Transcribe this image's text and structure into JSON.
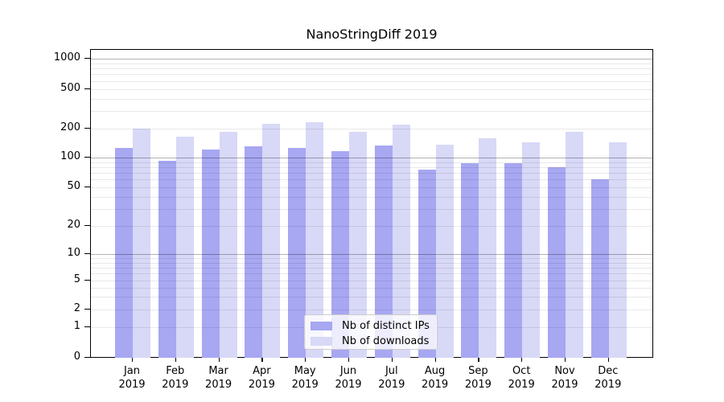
{
  "title": "NanoStringDiff 2019",
  "legend": {
    "items": [
      {
        "label": "Nb of distinct IPs",
        "color": "#A7A7F2"
      },
      {
        "label": "Nb of downloads",
        "color": "#D8D8F7"
      }
    ]
  },
  "y_axis": {
    "ticks": [
      {
        "label": "1000",
        "value": 1000
      },
      {
        "label": "500",
        "value": 500
      },
      {
        "label": "200",
        "value": 200
      },
      {
        "label": "100",
        "value": 100
      },
      {
        "label": "50",
        "value": 50
      },
      {
        "label": "20",
        "value": 20
      },
      {
        "label": "10",
        "value": 10
      },
      {
        "label": "5",
        "value": 5
      },
      {
        "label": "2",
        "value": 2
      },
      {
        "label": "1",
        "value": 1
      },
      {
        "label": "0",
        "value": 0
      }
    ]
  },
  "chart_data": {
    "type": "bar",
    "title": "NanoStringDiff 2019",
    "categories": [
      "Jan 2019",
      "Feb 2019",
      "Mar 2019",
      "Apr 2019",
      "May 2019",
      "Jun 2019",
      "Jul 2019",
      "Aug 2019",
      "Sep 2019",
      "Oct 2019",
      "Nov 2019",
      "Dec 2019"
    ],
    "series": [
      {
        "name": "Nb of distinct IPs",
        "color": "#A7A7F2",
        "values": [
          125,
          92,
          122,
          130,
          126,
          116,
          133,
          76,
          87,
          87,
          80,
          60
        ]
      },
      {
        "name": "Nb of downloads",
        "color": "#D8D8F7",
        "values": [
          200,
          163,
          183,
          224,
          230,
          183,
          217,
          137,
          157,
          143,
          185,
          144
        ]
      }
    ],
    "xlabel": "",
    "ylabel": "",
    "yticks": [
      0,
      1,
      2,
      5,
      10,
      20,
      50,
      100,
      200,
      500,
      1000
    ],
    "ylim": [
      0,
      1000
    ],
    "y_scale": "log-like with 0 baseline",
    "grid": true,
    "gridline_minor_values": [
      3,
      4,
      6,
      7,
      8,
      9,
      30,
      40,
      60,
      70,
      80,
      90,
      300,
      400,
      600,
      700,
      800,
      900
    ],
    "gridline_emphasis_values": [
      10,
      100,
      1000
    ],
    "legend_position": "lower center inside"
  },
  "colors": {
    "bar_distinct_ips": "#A7A7F2",
    "bar_downloads": "#D8D8F7",
    "gridline_minor": "#ebebeb",
    "gridline_power10": "#b3b3b3",
    "frame": "#000000",
    "background": "#ffffff"
  }
}
